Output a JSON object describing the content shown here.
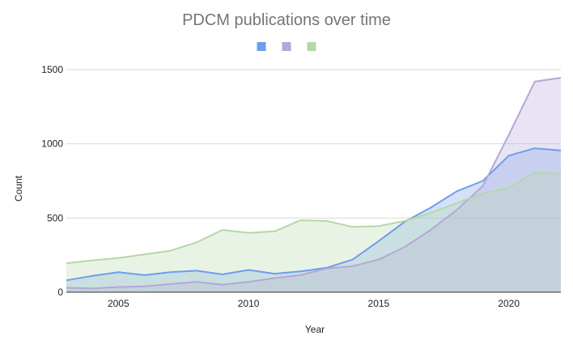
{
  "chart_data": {
    "type": "area",
    "title": "PDCM publications over time",
    "xlabel": "Year",
    "ylabel": "Count",
    "xlim": [
      2003,
      2022
    ],
    "ylim": [
      0,
      1500
    ],
    "x_ticks": [
      2005,
      2010,
      2015,
      2020
    ],
    "y_ticks": [
      0,
      500,
      1000,
      1500
    ],
    "grid": true,
    "legend_position": "top",
    "x": [
      2003,
      2004,
      2005,
      2006,
      2007,
      2008,
      2009,
      2010,
      2011,
      2012,
      2013,
      2014,
      2015,
      2016,
      2017,
      2018,
      2019,
      2020,
      2021,
      2022
    ],
    "series": [
      {
        "color": "#6d9eeb",
        "values": [
          80,
          110,
          135,
          115,
          135,
          145,
          120,
          150,
          125,
          140,
          165,
          220,
          345,
          475,
          570,
          680,
          750,
          920,
          970,
          955
        ]
      },
      {
        "color": "#b4a7d6",
        "values": [
          30,
          25,
          35,
          40,
          55,
          70,
          50,
          70,
          95,
          115,
          160,
          175,
          220,
          305,
          420,
          555,
          715,
          1060,
          1420,
          1445
        ]
      },
      {
        "color": "#b6d7a8",
        "values": [
          195,
          215,
          230,
          255,
          280,
          335,
          420,
          400,
          410,
          485,
          480,
          440,
          445,
          480,
          535,
          600,
          665,
          705,
          805,
          800
        ]
      }
    ]
  }
}
